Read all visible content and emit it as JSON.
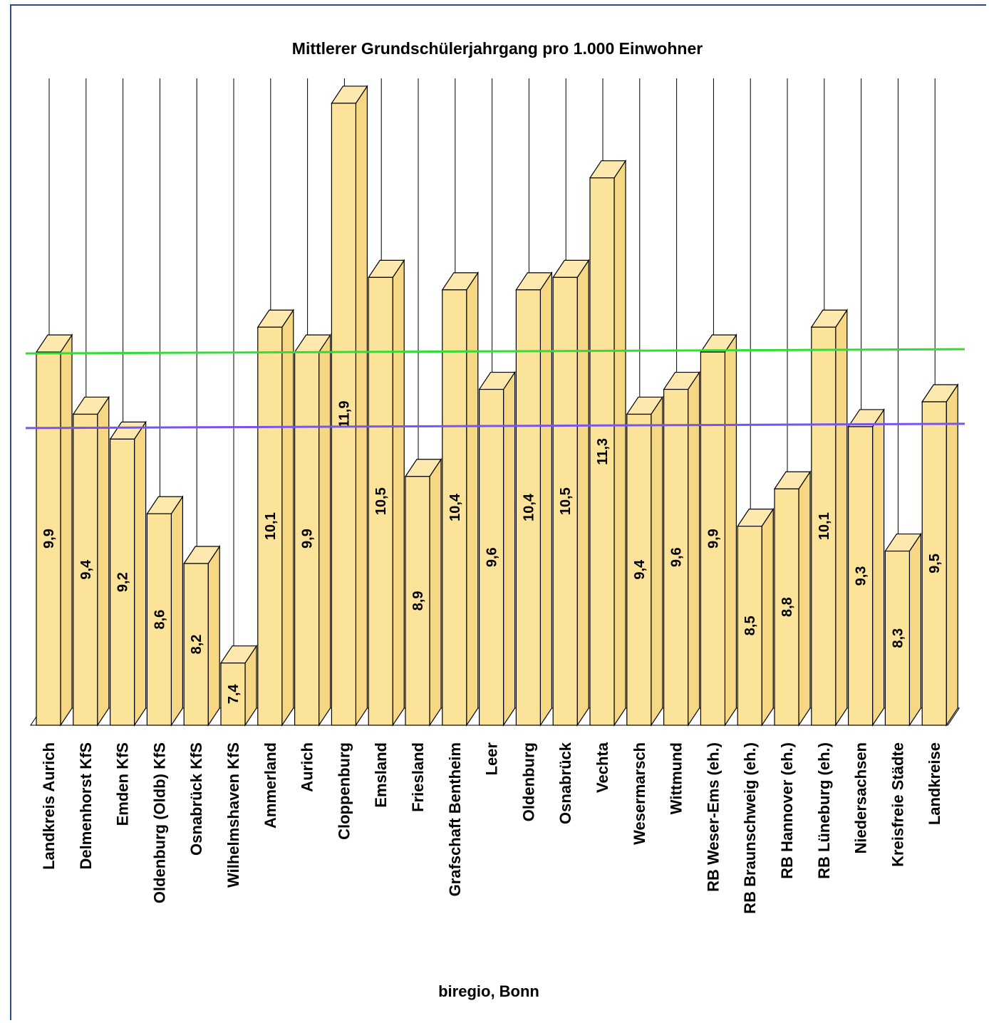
{
  "chart_data": {
    "type": "bar",
    "title": "Mittlerer Grundschülerjahrgang pro 1.000 Einwohner",
    "source": "biregio, Bonn",
    "categories": [
      "Landkreis Aurich",
      "Delmenhorst KfS",
      "Emden KfS",
      "Oldenburg (Oldb) KfS",
      "Osnabrück KfS",
      "Wilhelmshaven KfS",
      "Ammerland",
      "Aurich",
      "Cloppenburg",
      "Emsland",
      "Friesland",
      "Grafschaft Bentheim",
      "Leer",
      "Oldenburg",
      "Osnabrück",
      "Vechta",
      "Wesermarsch",
      "Wittmund",
      "RB Weser-Ems (eh.)",
      "RB Braunschweig (eh.)",
      "RB Hannover (eh.)",
      "RB Lüneburg (eh.)",
      "Niedersachsen",
      "Kreisfreie Städte",
      "Landkreise"
    ],
    "values": [
      9.9,
      9.4,
      9.2,
      8.6,
      8.2,
      7.4,
      10.1,
      9.9,
      11.9,
      10.5,
      8.9,
      10.4,
      9.6,
      10.4,
      10.5,
      11.3,
      9.4,
      9.6,
      9.9,
      8.5,
      8.8,
      10.1,
      9.3,
      8.3,
      9.5
    ],
    "value_labels": [
      "9,9",
      "9,4",
      "9,2",
      "8,6",
      "8,2",
      "7,4",
      "10,1",
      "9,9",
      "11,9",
      "10,5",
      "8,9",
      "10,4",
      "9,6",
      "10,4",
      "10,5",
      "11,3",
      "9,4",
      "9,6",
      "9,9",
      "8,5",
      "8,8",
      "10,1",
      "9,3",
      "8,3",
      "9,5"
    ],
    "reference_lines": [
      {
        "value": 9.9,
        "color": "#33dd33"
      },
      {
        "value": 9.3,
        "color": "#7755ee"
      }
    ],
    "ylim": [
      6.9,
      12.1
    ],
    "grid": true,
    "colors": {
      "bar_front": "#fbe39a",
      "bar_side": "#f6d784",
      "bar_top": "#fde9ad",
      "outline": "#000000",
      "gridline": "#000000",
      "frame": "#2a4c8a"
    }
  }
}
